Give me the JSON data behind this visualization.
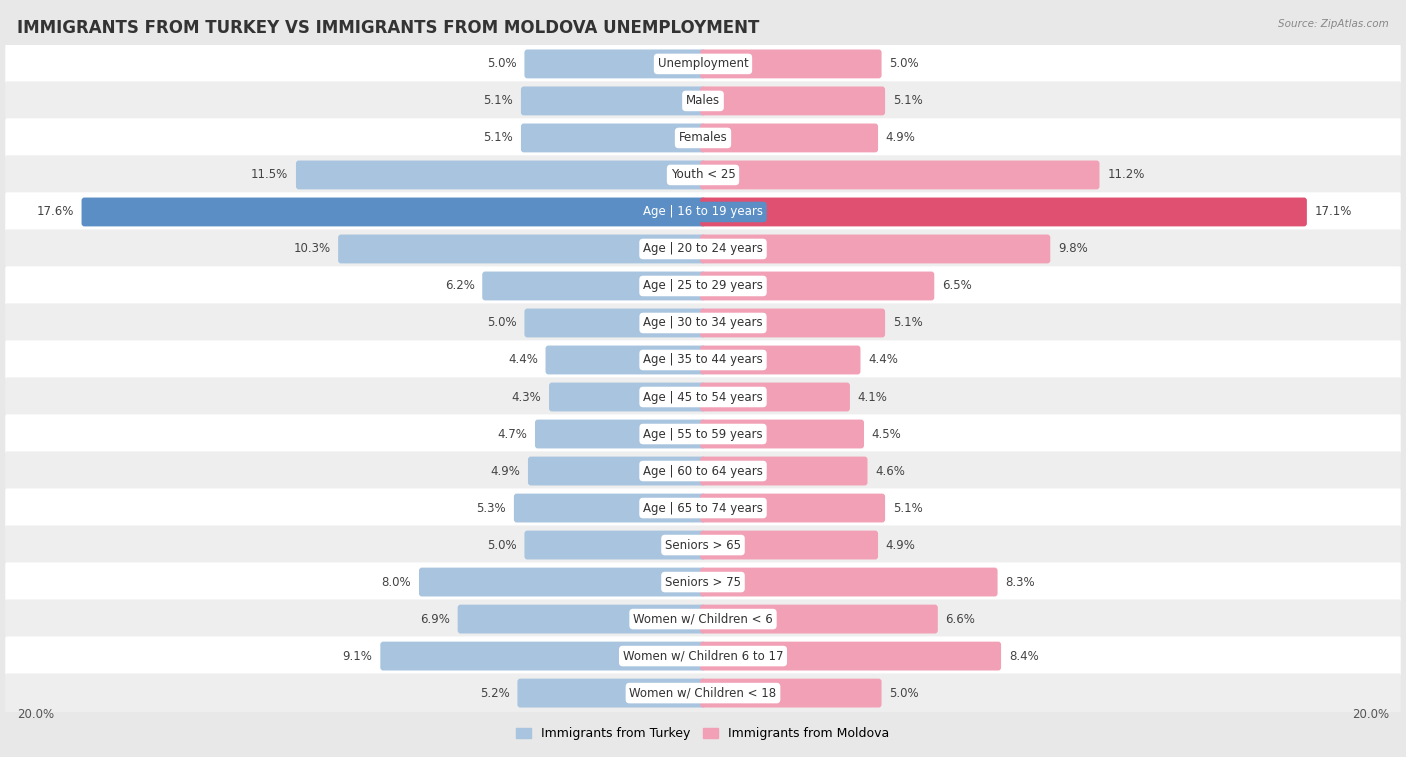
{
  "title": "IMMIGRANTS FROM TURKEY VS IMMIGRANTS FROM MOLDOVA UNEMPLOYMENT",
  "source": "Source: ZipAtlas.com",
  "categories": [
    "Unemployment",
    "Males",
    "Females",
    "Youth < 25",
    "Age | 16 to 19 years",
    "Age | 20 to 24 years",
    "Age | 25 to 29 years",
    "Age | 30 to 34 years",
    "Age | 35 to 44 years",
    "Age | 45 to 54 years",
    "Age | 55 to 59 years",
    "Age | 60 to 64 years",
    "Age | 65 to 74 years",
    "Seniors > 65",
    "Seniors > 75",
    "Women w/ Children < 6",
    "Women w/ Children 6 to 17",
    "Women w/ Children < 18"
  ],
  "turkey_values": [
    5.0,
    5.1,
    5.1,
    11.5,
    17.6,
    10.3,
    6.2,
    5.0,
    4.4,
    4.3,
    4.7,
    4.9,
    5.3,
    5.0,
    8.0,
    6.9,
    9.1,
    5.2
  ],
  "moldova_values": [
    5.0,
    5.1,
    4.9,
    11.2,
    17.1,
    9.8,
    6.5,
    5.1,
    4.4,
    4.1,
    4.5,
    4.6,
    5.1,
    4.9,
    8.3,
    6.6,
    8.4,
    5.0
  ],
  "turkey_color": "#a8c4de",
  "moldova_color": "#f2a0b5",
  "turkey_highlight_color": "#5b8ec4",
  "moldova_highlight_color": "#e05070",
  "highlight_row": 4,
  "axis_max": 20.0,
  "background_color": "#e8e8e8",
  "row_even_color": "#ffffff",
  "row_odd_color": "#eeeeee",
  "label_fontsize": 8.5,
  "title_fontsize": 12,
  "legend_label_turkey": "Immigrants from Turkey",
  "legend_label_moldova": "Immigrants from Moldova"
}
